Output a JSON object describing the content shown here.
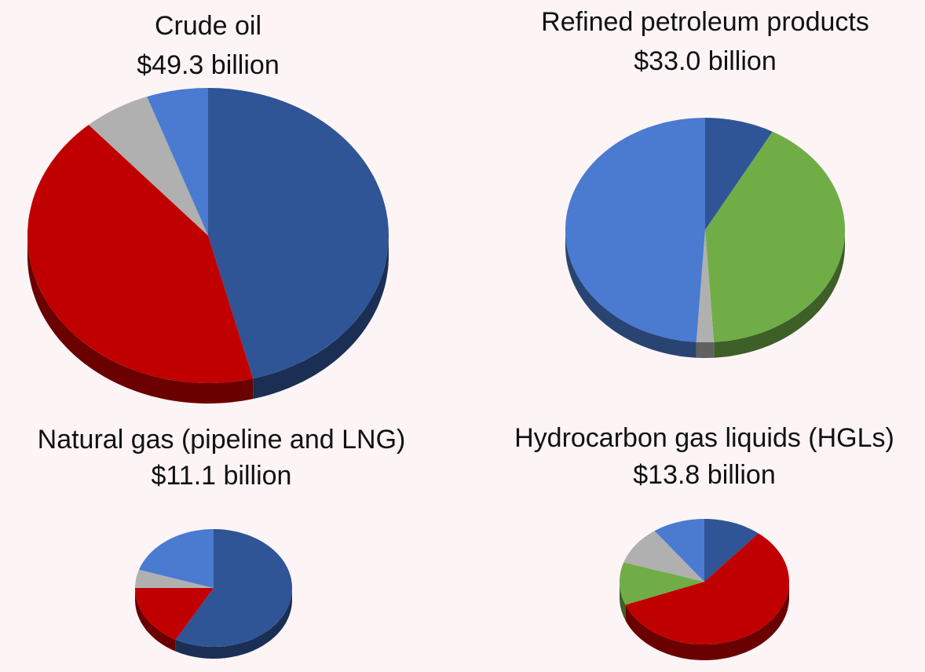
{
  "chart_data": [
    {
      "type": "pie",
      "title": "Crude oil",
      "subtitle": "$49.3 billion",
      "values": [
        46,
        42.5,
        6,
        5.5
      ],
      "colors": [
        "#2f5597",
        "#c00000",
        "#b0b0b0",
        "#4a7bd0"
      ]
    },
    {
      "type": "pie",
      "title": "Refined petroleum products",
      "subtitle": "$33.0 billion",
      "values": [
        8,
        41,
        2,
        49
      ],
      "colors": [
        "#2f5597",
        "#70ad47",
        "#b0b0b0",
        "#4a7bd0"
      ]
    },
    {
      "type": "pie",
      "title": "Natural gas (pipeline and LNG)",
      "subtitle": "$11.1 billion",
      "values": [
        58,
        17,
        5,
        20
      ],
      "colors": [
        "#2f5597",
        "#c00000",
        "#b0b0b0",
        "#4a7bd0"
      ]
    },
    {
      "type": "pie",
      "title": "Hydrocarbon gas liquids (HGLs)",
      "subtitle": "$13.8 billion",
      "values": [
        11,
        58,
        11,
        10,
        10
      ],
      "colors": [
        "#2f5597",
        "#c00000",
        "#70ad47",
        "#b0b0b0",
        "#4a7bd0"
      ]
    }
  ]
}
